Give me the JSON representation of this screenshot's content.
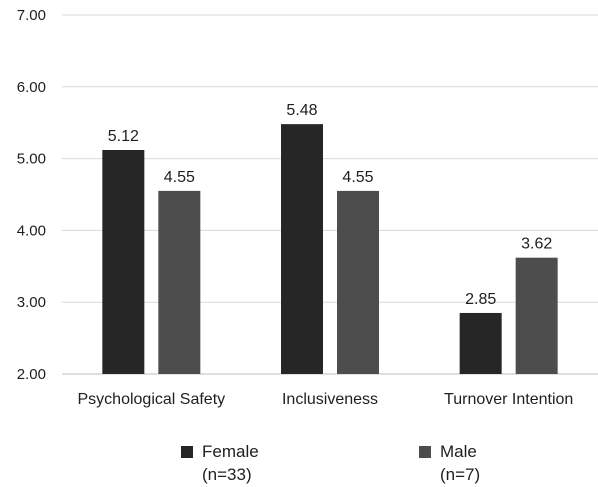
{
  "chart_data": {
    "type": "bar",
    "categories": [
      "Psychological Safety",
      "Inclusiveness",
      "Turnover Intention"
    ],
    "series": [
      {
        "name": "Female (n=33)",
        "values": [
          5.12,
          5.48,
          2.85
        ],
        "color": "#262626"
      },
      {
        "name": "Male (n=7)",
        "values": [
          4.55,
          4.55,
          3.62
        ],
        "color": "#4d4d4d"
      }
    ],
    "title": "",
    "xlabel": "",
    "ylabel": "",
    "ylim": [
      2.0,
      7.0
    ],
    "yticks": [
      2.0,
      3.0,
      4.0,
      5.0,
      6.0,
      7.0
    ],
    "ytick_labels": [
      "2.00",
      "3.00",
      "4.00",
      "5.00",
      "6.00",
      "7.00"
    ],
    "data_labels": [
      [
        "5.12",
        "5.48",
        "2.85"
      ],
      [
        "4.55",
        "4.55",
        "3.62"
      ]
    ],
    "grid": true,
    "gridline_color": "#d9d9d9",
    "legend_position": "bottom"
  },
  "legend": {
    "female": {
      "line1": "Female",
      "line2": "(n=33)"
    },
    "male": {
      "line1": "Male",
      "line2": "(n=7)"
    }
  }
}
